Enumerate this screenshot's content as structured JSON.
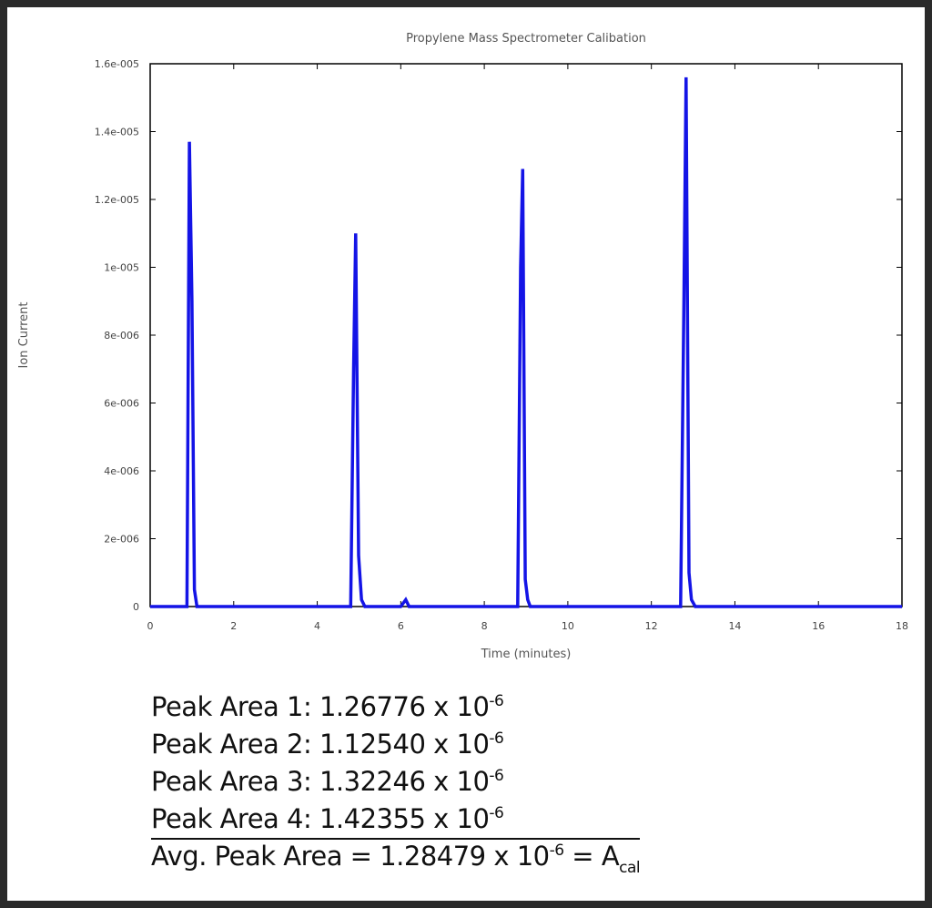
{
  "chart_data": {
    "type": "line",
    "title": "Propylene Mass Spectrometer Calibation",
    "xlabel": "Time (minutes)",
    "ylabel": "Ion Current",
    "xlim": [
      0,
      18
    ],
    "ylim": [
      0,
      1.6e-05
    ],
    "x_ticks": [
      0,
      2,
      4,
      6,
      8,
      10,
      12,
      14,
      16,
      18
    ],
    "y_ticks": [
      0,
      2e-06,
      4e-06,
      6e-06,
      8e-06,
      1e-05,
      1.2e-05,
      1.4e-05,
      1.6e-05
    ],
    "y_tick_labels": [
      "0",
      "2e-006",
      "4e-006",
      "6e-006",
      "8e-006",
      "1e-005",
      "1.2e-005",
      "1.4e-005",
      "1.6e-005"
    ],
    "grid": false,
    "series": [
      {
        "color": "#1414e6",
        "x": [
          0,
          0.8,
          0.88,
          0.94,
          1.0,
          1.06,
          1.12,
          4.8,
          4.87,
          4.92,
          4.99,
          5.06,
          5.14,
          6.0,
          6.12,
          6.2,
          8.8,
          8.87,
          8.92,
          8.98,
          9.04,
          9.1,
          12.7,
          12.78,
          12.83,
          12.9,
          12.96,
          13.05,
          18.0
        ],
        "y": [
          0,
          0,
          0,
          1.37e-05,
          9e-06,
          5e-07,
          0,
          0,
          7e-06,
          1.1e-05,
          1.5e-06,
          2e-07,
          0,
          0,
          2e-07,
          0,
          0,
          1e-05,
          1.29e-05,
          8e-07,
          2e-07,
          0,
          0,
          9.2e-06,
          1.56e-05,
          1e-06,
          2e-07,
          0,
          0
        ]
      }
    ]
  },
  "colors": {
    "series": "#1414e6",
    "frame": "#2a2a2a",
    "text": "#111111"
  },
  "results": {
    "peaks": [
      {
        "label": "Peak Area 1:",
        "value": "1.26776 x 10",
        "exponent": "-6"
      },
      {
        "label": "Peak Area 2:",
        "value": "1.12540 x 10",
        "exponent": "-6"
      },
      {
        "label": "Peak Area 3:",
        "value": "1.32246 x 10",
        "exponent": "-6"
      },
      {
        "label": "Peak Area 4:",
        "value": "1.42355 x 10",
        "exponent": "-6"
      }
    ],
    "average": {
      "label": "Avg. Peak Area = 1.28479 x 10",
      "exponent": "-6",
      "suffix": " = A",
      "subscript": "cal"
    }
  }
}
